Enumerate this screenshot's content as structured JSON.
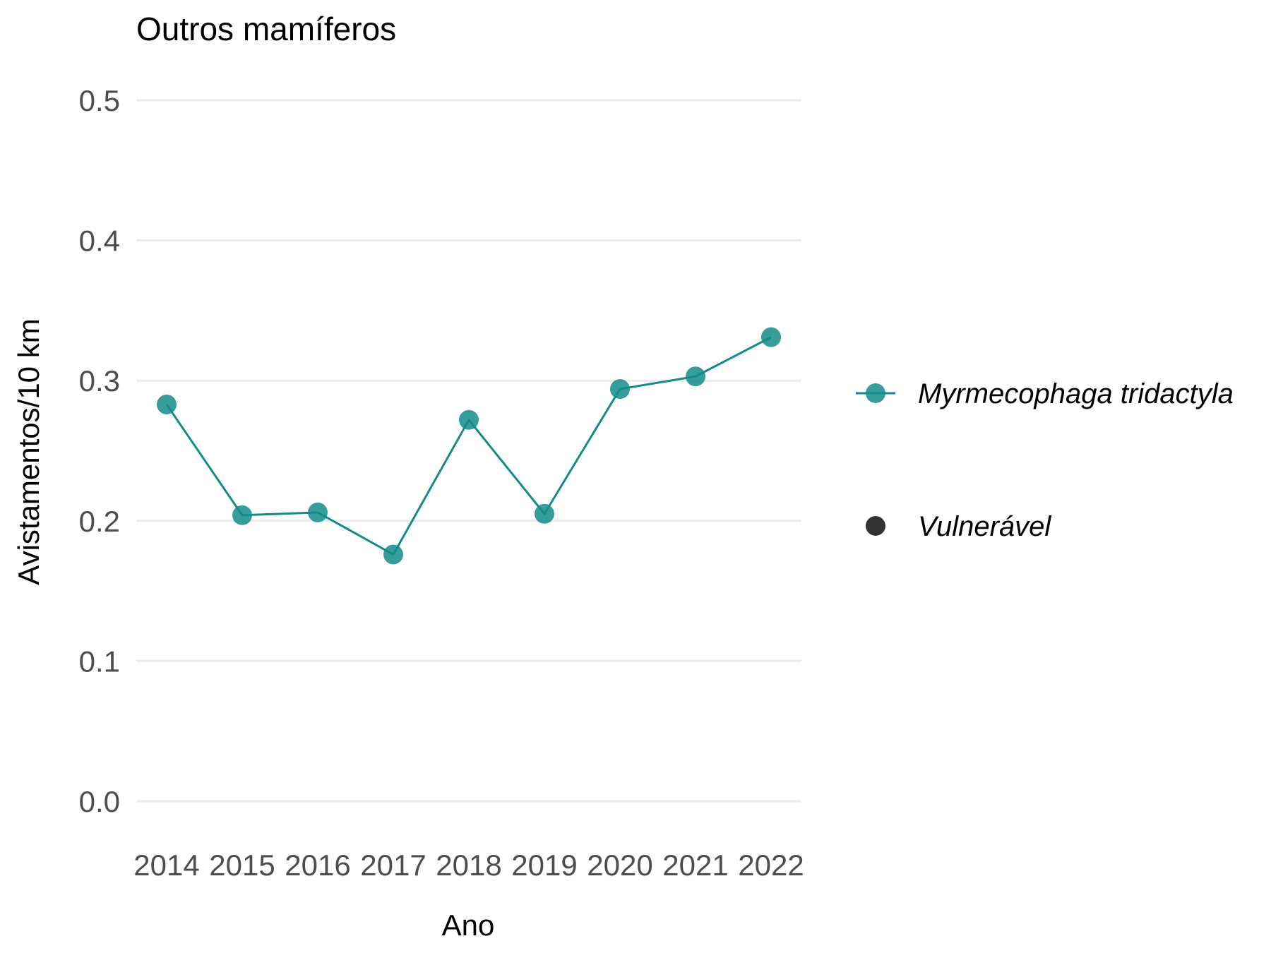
{
  "chart_data": {
    "type": "line",
    "title": "Outros mamíferos",
    "xlabel": "Ano",
    "ylabel": "Avistamentos/10 km",
    "categories": [
      "2014",
      "2015",
      "2016",
      "2017",
      "2018",
      "2019",
      "2020",
      "2021",
      "2022"
    ],
    "y_ticks": [
      "0.0",
      "0.1",
      "0.2",
      "0.3",
      "0.4",
      "0.5"
    ],
    "ylim": [
      0,
      0.5
    ],
    "grid": true,
    "legend_position": "right",
    "series": [
      {
        "name": "Myrmecophaga tridactyla",
        "color": "#138b8b",
        "values": [
          0.283,
          0.204,
          0.206,
          0.176,
          0.272,
          0.205,
          0.294,
          0.303,
          0.331
        ]
      }
    ],
    "status_legend": {
      "label": "Vulnerável",
      "color": "#333333"
    }
  }
}
